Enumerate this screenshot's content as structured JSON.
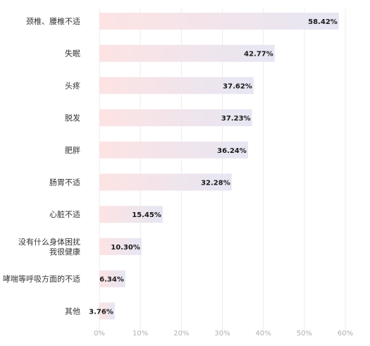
{
  "chart_data": {
    "type": "bar",
    "orientation": "horizontal",
    "categories": [
      [
        "颈椎、腰椎不适"
      ],
      [
        "失眠"
      ],
      [
        "头疼"
      ],
      [
        "脱发"
      ],
      [
        "肥胖"
      ],
      [
        "肠胃不适"
      ],
      [
        "心脏不适"
      ],
      [
        "没有什么身体困扰",
        "我很健康"
      ],
      [
        "哮喘等呼吸方面的不适"
      ],
      [
        "其他"
      ]
    ],
    "values": [
      58.42,
      42.77,
      37.62,
      37.23,
      36.24,
      32.28,
      15.45,
      10.3,
      6.34,
      3.76
    ],
    "value_labels": [
      "58.42%",
      "42.77%",
      "37.62%",
      "37.23%",
      "36.24%",
      "32.28%",
      "15.45%",
      "10.30%",
      "6.34%",
      "3.76%"
    ],
    "x_ticks": [
      "0%",
      "10%",
      "20%",
      "30%",
      "40%",
      "50%",
      "60%"
    ],
    "xlim": [
      0,
      60
    ],
    "grid": true,
    "colors": {
      "bar_start": "#fde3e3",
      "bar_end": "#e6e6f3",
      "grid": "#ececec"
    }
  }
}
